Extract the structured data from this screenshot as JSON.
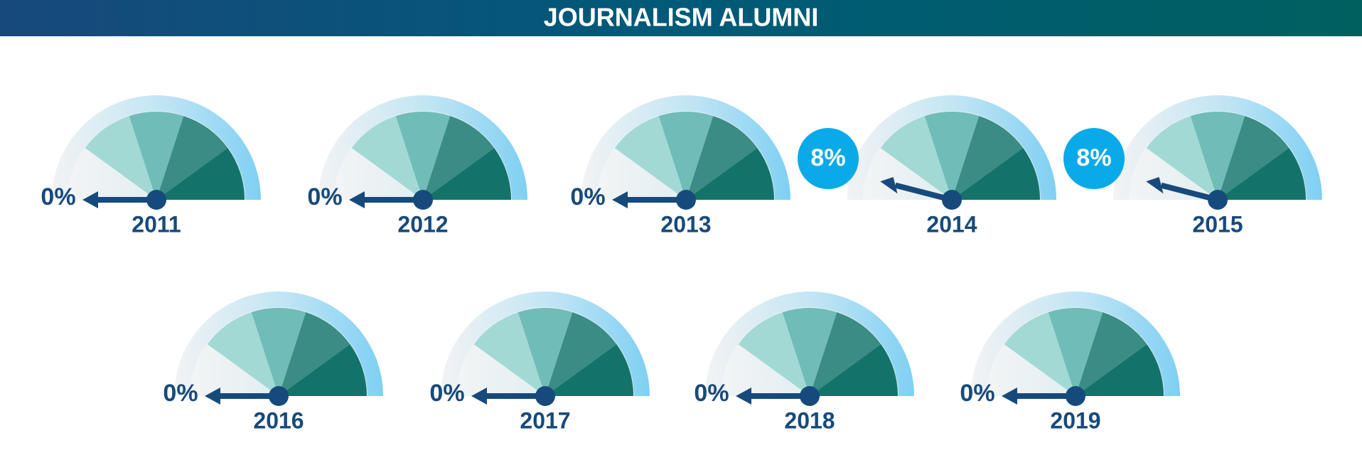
{
  "chart_data": {
    "type": "gauge",
    "title": "JOURNALISM ALUMNI",
    "categories": [
      "2011",
      "2012",
      "2013",
      "2014",
      "2015",
      "2016",
      "2017",
      "2018",
      "2019"
    ],
    "values": [
      0,
      0,
      0,
      8,
      8,
      0,
      0,
      0,
      0
    ],
    "value_labels": [
      "0%",
      "0%",
      "0%",
      "8%",
      "8%",
      "0%",
      "0%",
      "0%",
      "0%"
    ],
    "ylim": [
      0,
      100
    ],
    "color": "#174a7c"
  }
}
